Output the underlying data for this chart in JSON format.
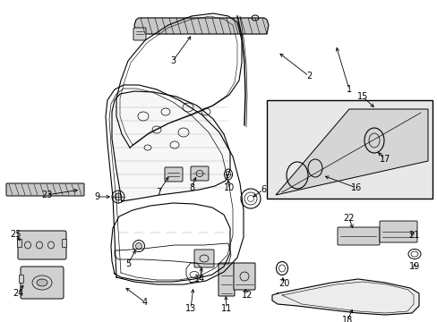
{
  "bg_color": "#ffffff",
  "line_color": "#000000",
  "label_fontsize": 7.0,
  "diagram_linewidth": 0.8,
  "inset_bg": "#e8e8e8",
  "trim_bg": "#c8c8c8",
  "component_bg": "#d0d0d0"
}
